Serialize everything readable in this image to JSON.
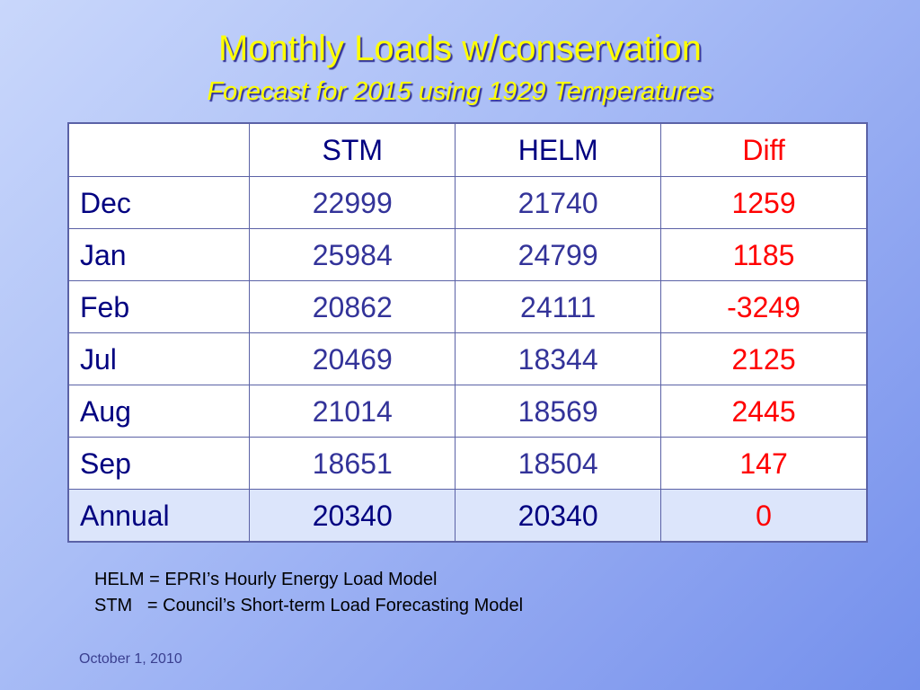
{
  "slide": {
    "title": "Monthly Loads w/conservation",
    "subtitle": "Forecast for 2015 using 1929 Temperatures",
    "date": "October 1, 2010"
  },
  "table": {
    "headers": [
      "",
      "STM",
      "HELM",
      "Diff"
    ],
    "rows": [
      [
        "Dec",
        "22999",
        "21740",
        "1259"
      ],
      [
        "Jan",
        "25984",
        "24799",
        "1185"
      ],
      [
        "Feb",
        "20862",
        "24111",
        "-3249"
      ],
      [
        "Jul",
        "20469",
        "18344",
        "2125"
      ],
      [
        "Aug",
        "21014",
        "18569",
        "2445"
      ],
      [
        "Sep",
        "18651",
        "18504",
        "147"
      ],
      [
        "Annual",
        "20340",
        "20340",
        "0"
      ]
    ]
  },
  "definitions": [
    "HELM = EPRI’s Hourly Energy Load Model",
    "STM   = Council’s Short-term Load Forecasting Model"
  ],
  "colors": {
    "title": "#ffff00",
    "diff": "#ff0000",
    "values": "#333399",
    "labels": "#000080",
    "annual_row": "#dce5fb"
  }
}
